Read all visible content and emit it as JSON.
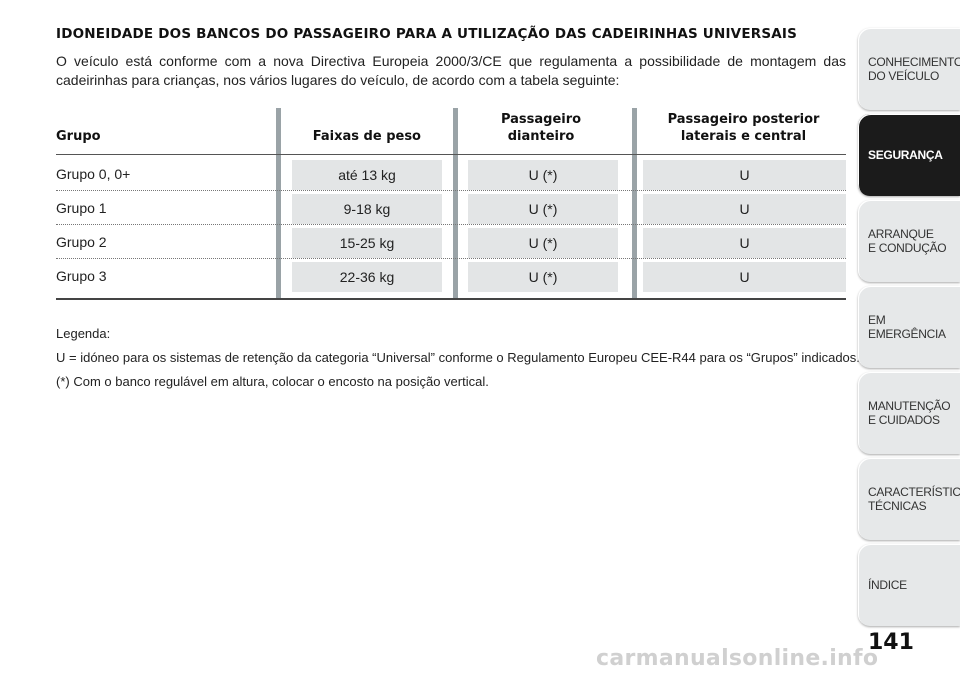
{
  "title": "IDONEIDADE DOS BANCOS DO PASSAGEIRO PARA A UTILIZAÇÃO DAS CADEIRINHAS UNIVERSAIS",
  "intro": "O veículo está conforme com a nova Directiva Europeia 2000/3/CE que regulamenta a possibilidade de montagem das cadeirinhas para crianças, nos vários lugares do veículo, de acordo com a tabela seguinte:",
  "table": {
    "headers": {
      "group": "Grupo",
      "weight": "Faixas de peso",
      "front": "Passageiro\ndianteiro",
      "rear": "Passageiro posterior\nlaterais e central"
    },
    "rows": [
      {
        "group": "Grupo 0, 0+",
        "weight": "até 13 kg",
        "front": "U (*)",
        "rear": "U"
      },
      {
        "group": "Grupo 1",
        "weight": "9-18 kg",
        "front": "U (*)",
        "rear": "U"
      },
      {
        "group": "Grupo 2",
        "weight": "15-25 kg",
        "front": "U (*)",
        "rear": "U"
      },
      {
        "group": "Grupo 3",
        "weight": "22-36 kg",
        "front": "U (*)",
        "rear": "U"
      }
    ]
  },
  "legend": {
    "title": "Legenda:",
    "line1": "U = idóneo para os sistemas de retenção da categoria “Universal” conforme o Regulamento Europeu CEE-R44 para os “Grupos” indicados.",
    "line2": "(*) Com o banco regulável em altura, colocar o encosto na posição vertical."
  },
  "sidebar": {
    "tabs": [
      {
        "label": "CONHECIMENTO\nDO VEÍCULO",
        "active": false
      },
      {
        "label": "SEGURANÇA",
        "active": true
      },
      {
        "label": "ARRANQUE\nE CONDUÇÃO",
        "active": false
      },
      {
        "label": "EM EMERGÊNCIA",
        "active": false
      },
      {
        "label": "MANUTENÇÃO\nE CUIDADOS",
        "active": false
      },
      {
        "label": "CARACTERÍSTICAS\nTÉCNICAS",
        "active": false
      },
      {
        "label": "ÍNDICE",
        "active": false
      }
    ]
  },
  "page_number": "141",
  "watermark": "carmanualsonline.info",
  "colors": {
    "accent_dark": "#1b1b1b",
    "cell_bg": "#e3e5e6",
    "column_bar": "#9aa3a7"
  }
}
